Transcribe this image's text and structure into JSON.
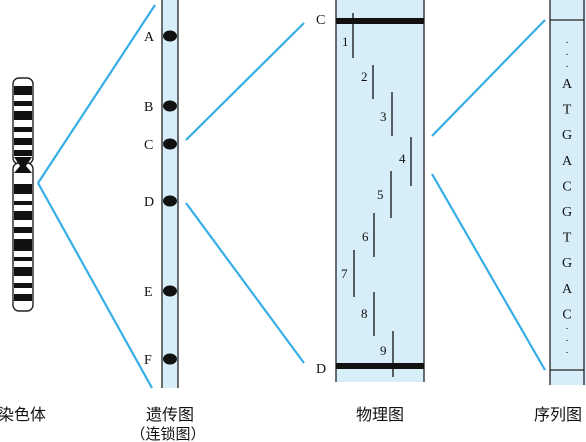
{
  "colors": {
    "panel_fill": "#d7eef9",
    "connector": "#35aee6",
    "ink": "#111111"
  },
  "labels": {
    "chromosome": "染色体",
    "genetic_map": "遗传图",
    "genetic_map_sub": "（连锁图）",
    "physical_map": "物理图",
    "sequence_map": "序列图"
  },
  "genetic_markers": [
    "A",
    "B",
    "C",
    "D",
    "E",
    "F"
  ],
  "physical_map_ends": {
    "top": "C",
    "bottom": "D"
  },
  "fragments": [
    "1",
    "2",
    "3",
    "4",
    "5",
    "6",
    "7",
    "8",
    "9"
  ],
  "sequence": {
    "top_dots": "·\n·\n·",
    "bases": [
      "A",
      "T",
      "G",
      "A",
      "C",
      "G",
      "T",
      "G",
      "A",
      "C"
    ],
    "bottom_dots": "·\n·\n·"
  }
}
